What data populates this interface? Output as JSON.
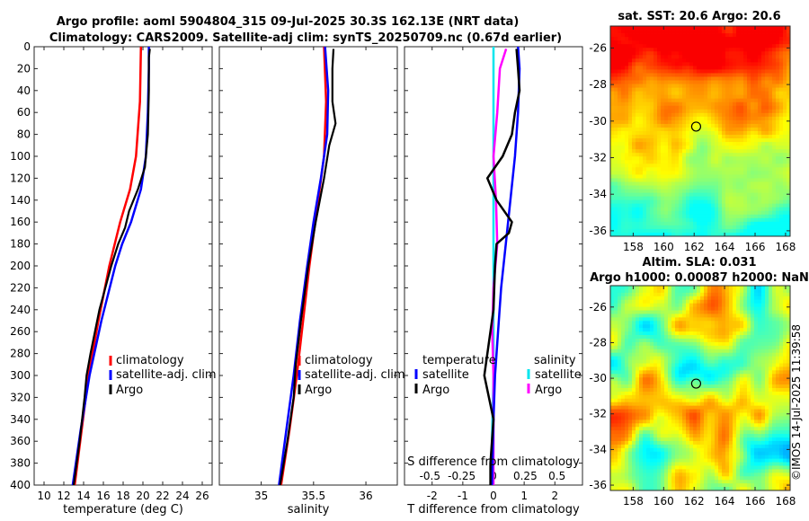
{
  "title": {
    "line1": "Argo profile: aoml 5904804_315 09-Jul-2025 30.3S 162.13E (NRT data)",
    "line2": "Climatology: CARS2009. Satellite-adj clim: synTS_20250709.nc (0.67d earlier)"
  },
  "colors": {
    "climatology": "#ff0000",
    "satellite": "#0000ff",
    "argo": "#000000",
    "sat_salinity": "#00e6ee",
    "argo_salinity": "#ff00ff"
  },
  "chart_data": [
    {
      "id": "temperature",
      "type": "line",
      "xlabel": "temperature (deg C)",
      "ylabel": "",
      "xlim": [
        9,
        27
      ],
      "ylim": [
        0,
        400
      ],
      "xticks": [
        "10",
        "12",
        "14",
        "16",
        "18",
        "20",
        "22",
        "24",
        "26"
      ],
      "yticks": [
        "0",
        "20",
        "40",
        "60",
        "80",
        "100",
        "120",
        "140",
        "160",
        "180",
        "200",
        "220",
        "240",
        "260",
        "280",
        "300",
        "320",
        "340",
        "360",
        "380",
        "400"
      ],
      "legend": [
        "climatology",
        "satellite-adj. clim",
        "Argo"
      ],
      "series": [
        {
          "name": "climatology",
          "depth": [
            0,
            50,
            100,
            130,
            160,
            200,
            250,
            300,
            350,
            400
          ],
          "values": [
            19.8,
            19.7,
            19.3,
            18.7,
            17.7,
            16.6,
            15.5,
            14.5,
            13.8,
            13.1
          ]
        },
        {
          "name": "satellite-adj. clim",
          "depth": [
            0,
            20,
            60,
            100,
            130,
            160,
            180,
            200,
            250,
            300,
            350,
            400
          ],
          "values": [
            20.6,
            20.6,
            20.5,
            20.3,
            19.8,
            18.8,
            17.9,
            17.2,
            15.8,
            14.6,
            13.7,
            12.9
          ]
        },
        {
          "name": "Argo",
          "depth": [
            2,
            10,
            40,
            80,
            110,
            130,
            150,
            165,
            180,
            200,
            240,
            280,
            300,
            320,
            360,
            400
          ],
          "values": [
            20.7,
            20.6,
            20.6,
            20.5,
            20.2,
            19.5,
            18.6,
            18.2,
            17.5,
            16.8,
            15.6,
            14.7,
            14.3,
            14.1,
            13.6,
            13.0
          ]
        }
      ]
    },
    {
      "id": "salinity",
      "type": "line",
      "xlabel": "salinity",
      "ylabel": "",
      "xlim": [
        34.6,
        36.3
      ],
      "ylim": [
        0,
        400
      ],
      "xticks": [
        "35",
        "35.5",
        "36"
      ],
      "legend": [
        "climatology",
        "satellite-adj. clim",
        "Argo"
      ],
      "series": [
        {
          "name": "climatology",
          "depth": [
            0,
            50,
            100,
            150,
            200,
            250,
            300,
            350,
            400
          ],
          "values": [
            35.6,
            35.62,
            35.6,
            35.53,
            35.46,
            35.4,
            35.34,
            35.27,
            35.19
          ]
        },
        {
          "name": "satellite-adj. clim",
          "depth": [
            0,
            40,
            80,
            120,
            160,
            200,
            250,
            300,
            350,
            400
          ],
          "values": [
            35.61,
            35.64,
            35.63,
            35.57,
            35.5,
            35.44,
            35.37,
            35.31,
            35.24,
            35.17
          ]
        },
        {
          "name": "Argo",
          "depth": [
            2,
            20,
            50,
            70,
            90,
            120,
            160,
            200,
            250,
            290,
            320,
            360,
            400
          ],
          "values": [
            35.69,
            35.68,
            35.68,
            35.71,
            35.65,
            35.6,
            35.52,
            35.45,
            35.38,
            35.33,
            35.31,
            35.25,
            35.18
          ]
        }
      ]
    },
    {
      "id": "difference",
      "type": "line",
      "xlabel": "T difference from climatology",
      "top_label": "S difference from climatology",
      "xlim": [
        -2.9,
        2.9
      ],
      "ylim": [
        0,
        400
      ],
      "xticks": [
        "-2",
        "-1",
        "0",
        "1",
        "2"
      ],
      "top_ticks": [
        "-0.5",
        "-0.25",
        "0",
        "0.25",
        "0.5"
      ],
      "legend_title_left": "temperature",
      "legend_title_right": "salinity",
      "legend": [
        "satellite",
        "Argo",
        "satellite",
        "Argo"
      ],
      "series": [
        {
          "name": "T satellite",
          "depth": [
            0,
            20,
            60,
            100,
            140,
            180,
            220,
            260,
            300,
            340,
            400
          ],
          "values": [
            0.8,
            0.85,
            0.8,
            0.7,
            0.55,
            0.4,
            0.25,
            0.15,
            0.05,
            0.0,
            -0.05
          ]
        },
        {
          "name": "T Argo",
          "depth": [
            2,
            20,
            40,
            60,
            80,
            100,
            120,
            140,
            160,
            170,
            180,
            200,
            240,
            300,
            340,
            380,
            400
          ],
          "values": [
            0.75,
            0.8,
            0.85,
            0.7,
            0.6,
            0.3,
            -0.2,
            0.1,
            0.6,
            0.5,
            0.1,
            0.05,
            0.0,
            -0.3,
            0.0,
            -0.1,
            -0.1
          ]
        },
        {
          "name": "S satellite",
          "depth": [
            0,
            100,
            200,
            300,
            400
          ],
          "values": [
            0.0,
            0.0,
            0.0,
            0.0,
            -0.02
          ]
        },
        {
          "name": "S Argo",
          "depth": [
            2,
            20,
            60,
            100,
            140,
            180,
            220,
            260,
            300,
            340,
            400
          ],
          "values": [
            0.1,
            0.05,
            0.03,
            0.0,
            0.02,
            0.03,
            0.0,
            -0.01,
            0.0,
            0.0,
            0.0
          ]
        }
      ]
    },
    {
      "id": "sst-map",
      "type": "heatmap",
      "title": "sat. SST: 20.6 Argo: 20.6",
      "xlim": [
        156.5,
        168.3
      ],
      "ylim": [
        -36.3,
        -24.8
      ],
      "xticks": [
        "158",
        "160",
        "162",
        "164",
        "166",
        "168"
      ],
      "yticks": [
        "-26",
        "-28",
        "-30",
        "-32",
        "-34",
        "-36"
      ],
      "marker": {
        "lon": 162.13,
        "lat": -30.3
      }
    },
    {
      "id": "sla-map",
      "type": "heatmap",
      "title": "Altim. SLA: 0.031",
      "subtitle": "Argo h1000: 0.00087 h2000: NaN",
      "xlim": [
        156.5,
        168.3
      ],
      "ylim": [
        -36.3,
        -24.8
      ],
      "xticks": [
        "158",
        "160",
        "162",
        "164",
        "166",
        "168"
      ],
      "yticks": [
        "-26",
        "-28",
        "-30",
        "-32",
        "-34",
        "-36"
      ],
      "marker": {
        "lon": 162.13,
        "lat": -30.3
      }
    }
  ],
  "watermark": "©IMOS 14-Jul-2025 11:39:58"
}
